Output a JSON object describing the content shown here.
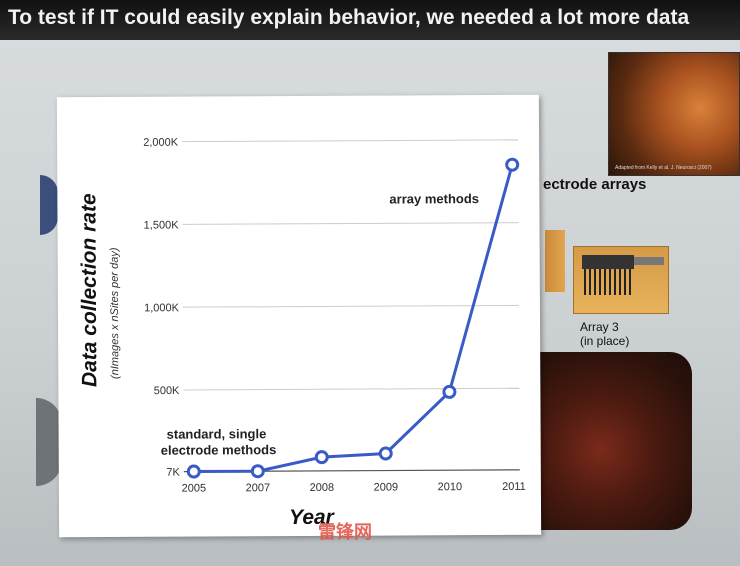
{
  "slide": {
    "title": "To test if IT could easily explain behavior, we needed a lot more data",
    "arrays_label": "ectrode arrays",
    "array3_label_line1": "Array 3",
    "array3_label_line2": "(in place)",
    "photo_credit": "Adapted from Kelly et al. J. Neurosci (2007)",
    "watermark": "雷锋网"
  },
  "colors": {
    "line": "#3a5bc7",
    "marker_fill": "#ffffff",
    "grid": "#cccccc",
    "title_bar": "#1a1a1a"
  },
  "chart_data": {
    "type": "line",
    "categories": [
      "2005",
      "2007",
      "2008",
      "2009",
      "2010",
      "2011"
    ],
    "values": [
      7,
      7,
      90,
      110,
      480,
      1850
    ],
    "ylabel": "Data collection rate",
    "ylabel_sub": "(nImages x nSites per day)",
    "xlabel": "Year",
    "yticks": [
      7,
      500,
      1000,
      1500,
      2000
    ],
    "ytick_labels": [
      "7K",
      "500K",
      "1,000K",
      "1,500K",
      "2,000K"
    ],
    "ylim": [
      7,
      2000
    ],
    "grid": true,
    "annotations": [
      {
        "text": "array methods",
        "near": "2010-2011 upper"
      },
      {
        "text": "standard, single",
        "near": "2005-2007 lower"
      },
      {
        "text": "electrode methods",
        "near": "2005-2007 lower"
      }
    ]
  }
}
